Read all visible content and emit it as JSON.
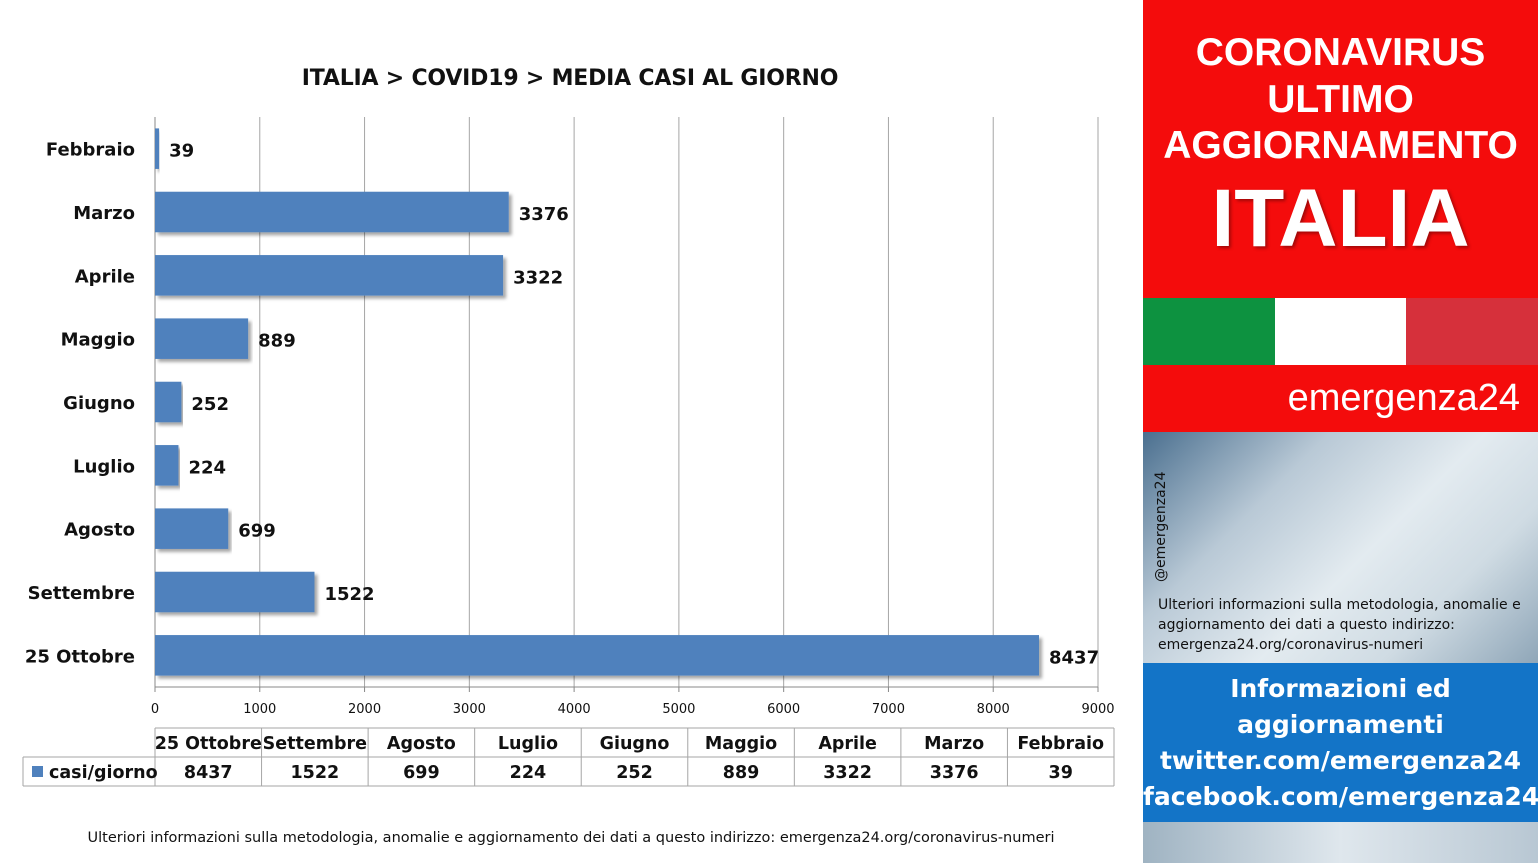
{
  "chart_data": {
    "type": "bar",
    "orientation": "horizontal",
    "title": "ITALIA >  COVID19 > MEDIA CASI AL GIORNO",
    "categories": [
      "Febbraio",
      "Marzo",
      "Aprile",
      "Maggio",
      "Giugno",
      "Luglio",
      "Agosto",
      "Settembre",
      "25 Ottobre"
    ],
    "series": [
      {
        "name": "casi/giorno",
        "values": [
          39,
          3376,
          3322,
          889,
          252,
          224,
          699,
          1522,
          8437
        ]
      }
    ],
    "xlim": [
      0,
      9000
    ],
    "x_ticks": [
      0,
      1000,
      2000,
      3000,
      4000,
      5000,
      6000,
      7000,
      8000,
      9000
    ],
    "grid": true,
    "bar_color": "#4f81bd",
    "data_table": {
      "columns": [
        "25 Ottobre",
        "Settembre",
        "Agosto",
        "Luglio",
        "Giugno",
        "Maggio",
        "Aprile",
        "Marzo",
        "Febbraio"
      ],
      "row_label": "casi/giorno",
      "values": [
        8437,
        1522,
        699,
        224,
        252,
        889,
        3322,
        3376,
        39
      ]
    }
  },
  "footer_note": "Ulteriori informazioni sulla metodologia, anomalie e aggiornamento dei dati a questo indirizzo: emergenza24.org/coronavirus-numeri",
  "panel": {
    "header_line1": "CORONAVIRUS",
    "header_line2": "ULTIMO",
    "header_line3": "AGGIORNAMENTO",
    "country": "ITALIA",
    "flag_colors": [
      "#0d9240",
      "#ffffff",
      "#d6303b"
    ],
    "brand": "emergenza24",
    "handle": "@emergenza24",
    "info_text": "Ulteriori informazioni sulla metodologia, anomalie e aggiornamento dei dati a questo indirizzo: emergenza24.org/coronavirus-numeri",
    "links_heading_1": "Informazioni ed",
    "links_heading_2": "aggiornamenti",
    "twitter": "twitter.com/emergenza24",
    "facebook": "facebook.com/emergenza24"
  }
}
